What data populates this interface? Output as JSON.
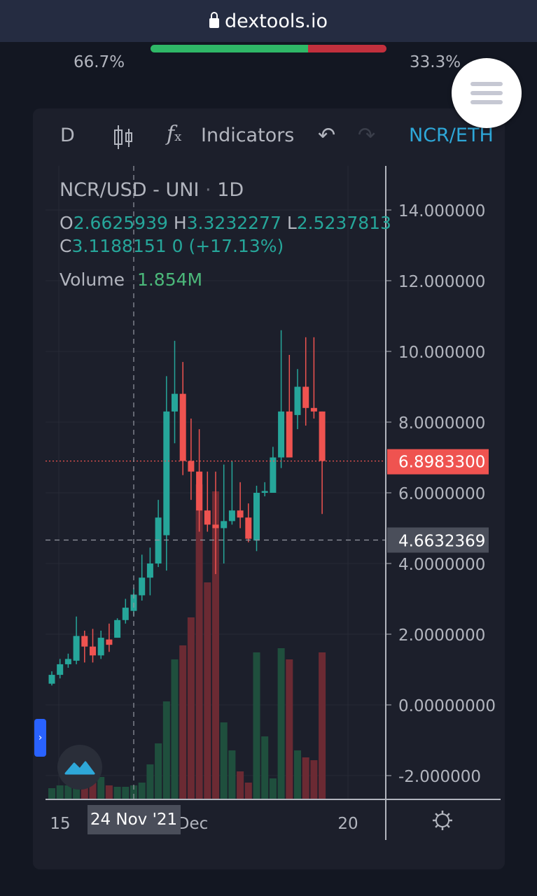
{
  "browser": {
    "url": "dextools.io"
  },
  "ratio": {
    "left_pct": "66.7%",
    "right_pct": "33.3%",
    "buy_fraction": 0.667
  },
  "toolbar": {
    "interval": "D",
    "indicators_label": "Indicators",
    "compare_pair": "NCR/ETH",
    "candle_icon": "candlestick-icon",
    "fx_icon": "function-icon",
    "undo_icon": "undo-icon",
    "redo_icon": "redo-icon"
  },
  "legend": {
    "symbol": "NCR/USD - UNI",
    "interval": "1D",
    "o_label": "O",
    "o": "2.6625939",
    "h_label": "H",
    "h": "3.3232277",
    "l_label": "L",
    "l": "2.5237813",
    "c_label": "C",
    "c": "3.1188151",
    "change": "0 (+17.13%)",
    "volume_label": "Volume",
    "volume": "1.854M"
  },
  "chart_data": {
    "type": "candlestick",
    "title": "NCR/USD - UNI · 1D",
    "ylim": [
      -2.7,
      15.2
    ],
    "yticks": [
      "14.000000",
      "12.000000",
      "10.000000",
      "8.0000000",
      "6.0000000",
      "4.0000000",
      "2.0000000",
      "0.00000000",
      "-2.000000"
    ],
    "ytick_values": [
      14,
      12,
      10,
      8,
      6,
      4,
      2,
      0,
      -2
    ],
    "xticks": [
      "15",
      "Dec",
      "20"
    ],
    "crosshair_date": "24 Nov '21",
    "last_price": "6.8983300",
    "last_price_value": 6.89833,
    "crosshair_price": "4.6632369",
    "crosshair_price_value": 4.6632369,
    "colors": {
      "up": "#26a69a",
      "down": "#ef5350",
      "vol_up": "#1f4f3d",
      "vol_down": "#6b2a33"
    },
    "candles": [
      {
        "date": "Nov 15",
        "o": 0.6,
        "h": 0.95,
        "l": 0.55,
        "c": 0.85,
        "v": 0.08
      },
      {
        "date": "Nov 16",
        "o": 0.85,
        "h": 1.3,
        "l": 0.75,
        "c": 1.15,
        "v": 0.1
      },
      {
        "date": "Nov 17",
        "o": 1.15,
        "h": 1.45,
        "l": 1.05,
        "c": 1.3,
        "v": 0.1
      },
      {
        "date": "Nov 18",
        "o": 1.25,
        "h": 2.5,
        "l": 1.15,
        "c": 1.95,
        "v": 0.12
      },
      {
        "date": "Nov 19",
        "o": 1.95,
        "h": 2.1,
        "l": 1.2,
        "c": 1.65,
        "v": 0.13
      },
      {
        "date": "Nov 20",
        "o": 1.65,
        "h": 2.15,
        "l": 1.2,
        "c": 1.4,
        "v": 0.15
      },
      {
        "date": "Nov 21",
        "o": 1.4,
        "h": 2.1,
        "l": 1.3,
        "c": 1.9,
        "v": 0.16
      },
      {
        "date": "Nov 22",
        "o": 1.85,
        "h": 2.3,
        "l": 1.5,
        "c": 1.7,
        "v": 0.1
      },
      {
        "date": "Nov 23",
        "o": 1.9,
        "h": 2.45,
        "l": 1.9,
        "c": 2.4,
        "v": 0.09
      },
      {
        "date": "Nov 24",
        "o": 2.4,
        "h": 3.0,
        "l": 2.3,
        "c": 2.75,
        "v": 0.09
      },
      {
        "date": "Nov 25",
        "o": 2.66,
        "h": 3.32,
        "l": 2.52,
        "c": 3.12,
        "v": 0.1
      },
      {
        "date": "Nov 26",
        "o": 3.1,
        "h": 4.25,
        "l": 2.95,
        "c": 3.6,
        "v": 0.12
      },
      {
        "date": "Nov 27",
        "o": 3.6,
        "h": 4.45,
        "l": 3.1,
        "c": 4.0,
        "v": 0.25
      },
      {
        "date": "Nov 28",
        "o": 4.0,
        "h": 5.8,
        "l": 3.9,
        "c": 5.3,
        "v": 0.4
      },
      {
        "date": "Nov 29",
        "o": 4.8,
        "h": 9.3,
        "l": 3.8,
        "c": 8.3,
        "v": 0.7
      },
      {
        "date": "Nov 30",
        "o": 8.3,
        "h": 10.3,
        "l": 7.4,
        "c": 8.8,
        "v": 1.0
      },
      {
        "date": "Dec 1",
        "o": 8.8,
        "h": 9.7,
        "l": 6.5,
        "c": 6.9,
        "v": 1.1
      },
      {
        "date": "Dec 2",
        "o": 6.9,
        "h": 8.1,
        "l": 5.8,
        "c": 6.6,
        "v": 1.3
      },
      {
        "date": "Dec 3",
        "o": 6.6,
        "h": 7.8,
        "l": 4.9,
        "c": 5.5,
        "v": 2.25
      },
      {
        "date": "Dec 4",
        "o": 5.5,
        "h": 6.6,
        "l": 4.9,
        "c": 5.1,
        "v": 1.55
      },
      {
        "date": "Dec 5",
        "o": 5.1,
        "h": 6.6,
        "l": 3.7,
        "c": 5.0,
        "v": 2.2
      },
      {
        "date": "Dec 6",
        "o": 5.0,
        "h": 6.8,
        "l": 4.0,
        "c": 5.2,
        "v": 0.55
      },
      {
        "date": "Dec 7",
        "o": 5.2,
        "h": 6.9,
        "l": 5.1,
        "c": 5.5,
        "v": 0.35
      },
      {
        "date": "Dec 8",
        "o": 5.5,
        "h": 6.3,
        "l": 5.0,
        "c": 5.3,
        "v": 0.2
      },
      {
        "date": "Dec 9",
        "o": 5.3,
        "h": 5.7,
        "l": 4.6,
        "c": 4.7,
        "v": 0.12
      },
      {
        "date": "Dec 10",
        "o": 4.65,
        "h": 6.2,
        "l": 4.35,
        "c": 6.0,
        "v": 1.05
      },
      {
        "date": "Dec 11",
        "o": 6.0,
        "h": 6.3,
        "l": 5.9,
        "c": 6.05,
        "v": 0.45
      },
      {
        "date": "Dec 12",
        "o": 6.0,
        "h": 7.3,
        "l": 6.0,
        "c": 7.0,
        "v": 0.15
      },
      {
        "date": "Dec 13",
        "o": 7.0,
        "h": 10.6,
        "l": 6.7,
        "c": 8.3,
        "v": 1.08
      },
      {
        "date": "Dec 14",
        "o": 8.3,
        "h": 9.9,
        "l": 7.0,
        "c": 7.0,
        "v": 1.0
      },
      {
        "date": "Dec 15",
        "o": 8.2,
        "h": 9.5,
        "l": 7.8,
        "c": 9.0,
        "v": 0.35
      },
      {
        "date": "Dec 16",
        "o": 9.0,
        "h": 10.4,
        "l": 7.9,
        "c": 8.4,
        "v": 0.3
      },
      {
        "date": "Dec 17",
        "o": 8.4,
        "h": 10.4,
        "l": 8.1,
        "c": 8.3,
        "v": 0.28
      },
      {
        "date": "Dec 18",
        "o": 8.3,
        "h": 8.3,
        "l": 5.4,
        "c": 6.9,
        "v": 1.05
      }
    ]
  }
}
